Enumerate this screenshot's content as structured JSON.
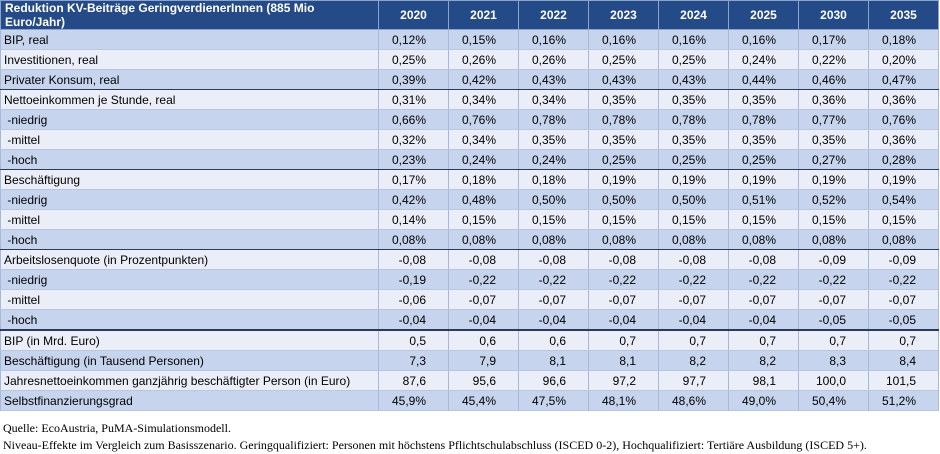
{
  "header": {
    "title": "Reduktion KV-Beiträge GeringverdienerInnen (885 Mio Euro/Jahr)",
    "years": [
      "2020",
      "2021",
      "2022",
      "2023",
      "2024",
      "2025",
      "2030",
      "2035"
    ]
  },
  "rows": [
    {
      "label": "BIP, real",
      "values": [
        "0,12%",
        "0,15%",
        "0,16%",
        "0,16%",
        "0,16%",
        "0,16%",
        "0,17%",
        "0,18%"
      ]
    },
    {
      "label": "Investitionen, real",
      "values": [
        "0,25%",
        "0,26%",
        "0,26%",
        "0,25%",
        "0,25%",
        "0,24%",
        "0,22%",
        "0,20%"
      ]
    },
    {
      "label": "Privater Konsum, real",
      "values": [
        "0,39%",
        "0,42%",
        "0,43%",
        "0,43%",
        "0,43%",
        "0,44%",
        "0,46%",
        "0,47%"
      ]
    },
    {
      "label": "Nettoeinkommen je Stunde, real",
      "values": [
        "0,31%",
        "0,34%",
        "0,34%",
        "0,35%",
        "0,35%",
        "0,35%",
        "0,36%",
        "0,36%"
      ]
    },
    {
      "label": " -niedrig",
      "values": [
        "0,66%",
        "0,76%",
        "0,78%",
        "0,78%",
        "0,78%",
        "0,78%",
        "0,77%",
        "0,76%"
      ]
    },
    {
      "label": " -mittel",
      "values": [
        "0,32%",
        "0,34%",
        "0,35%",
        "0,35%",
        "0,35%",
        "0,35%",
        "0,35%",
        "0,36%"
      ]
    },
    {
      "label": " -hoch",
      "values": [
        "0,23%",
        "0,24%",
        "0,24%",
        "0,25%",
        "0,25%",
        "0,25%",
        "0,27%",
        "0,28%"
      ]
    },
    {
      "label": "Beschäftigung",
      "values": [
        "0,17%",
        "0,18%",
        "0,18%",
        "0,19%",
        "0,19%",
        "0,19%",
        "0,19%",
        "0,19%"
      ]
    },
    {
      "label": " -niedrig",
      "values": [
        "0,42%",
        "0,48%",
        "0,50%",
        "0,50%",
        "0,50%",
        "0,51%",
        "0,52%",
        "0,54%"
      ]
    },
    {
      "label": " -mittel",
      "values": [
        "0,14%",
        "0,15%",
        "0,15%",
        "0,15%",
        "0,15%",
        "0,15%",
        "0,15%",
        "0,15%"
      ]
    },
    {
      "label": " -hoch",
      "values": [
        "0,08%",
        "0,08%",
        "0,08%",
        "0,08%",
        "0,08%",
        "0,08%",
        "0,08%",
        "0,08%"
      ]
    },
    {
      "label": "Arbeitslosenquote (in Prozentpunkten)",
      "values": [
        "-0,08",
        "-0,08",
        "-0,08",
        "-0,08",
        "-0,08",
        "-0,08",
        "-0,09",
        "-0,09"
      ]
    },
    {
      "label": " -niedrig",
      "values": [
        "-0,19",
        "-0,22",
        "-0,22",
        "-0,22",
        "-0,22",
        "-0,22",
        "-0,22",
        "-0,22"
      ]
    },
    {
      "label": " -mittel",
      "values": [
        "-0,06",
        "-0,07",
        "-0,07",
        "-0,07",
        "-0,07",
        "-0,07",
        "-0,07",
        "-0,07"
      ]
    },
    {
      "label": " -hoch",
      "values": [
        "-0,04",
        "-0,04",
        "-0,04",
        "-0,04",
        "-0,04",
        "-0,04",
        "-0,05",
        "-0,05"
      ]
    },
    {
      "label": "BIP (in Mrd. Euro)",
      "values": [
        "0,5",
        "0,6",
        "0,6",
        "0,7",
        "0,7",
        "0,7",
        "0,7",
        "0,7"
      ]
    },
    {
      "label": "Beschäftigung (in Tausend Personen)",
      "values": [
        "7,3",
        "7,9",
        "8,1",
        "8,1",
        "8,2",
        "8,2",
        "8,3",
        "8,4"
      ]
    },
    {
      "label": "Jahresnettoeinkommen ganzjährig beschäftigter Person (in Euro)",
      "values": [
        "87,6",
        "95,6",
        "96,6",
        "97,2",
        "97,7",
        "98,1",
        "100,0",
        "101,5"
      ]
    },
    {
      "label": "Selbstfinanzierungsgrad",
      "values": [
        "45,9%",
        "45,4%",
        "47,5%",
        "48,1%",
        "48,6%",
        "49,0%",
        "50,4%",
        "51,2%"
      ]
    }
  ],
  "notes": [
    "Quelle: EcoAustria, PuMA-Simulationsmodell.",
    "Niveau-Effekte im Vergleich zum Basisszenario. Geringqualifiziert: Personen mit höchstens Pflichtschulabschluss (ISCED 0-2), Hochqualifiziert: Tertiäre Ausbildung (ISCED 5+)."
  ]
}
